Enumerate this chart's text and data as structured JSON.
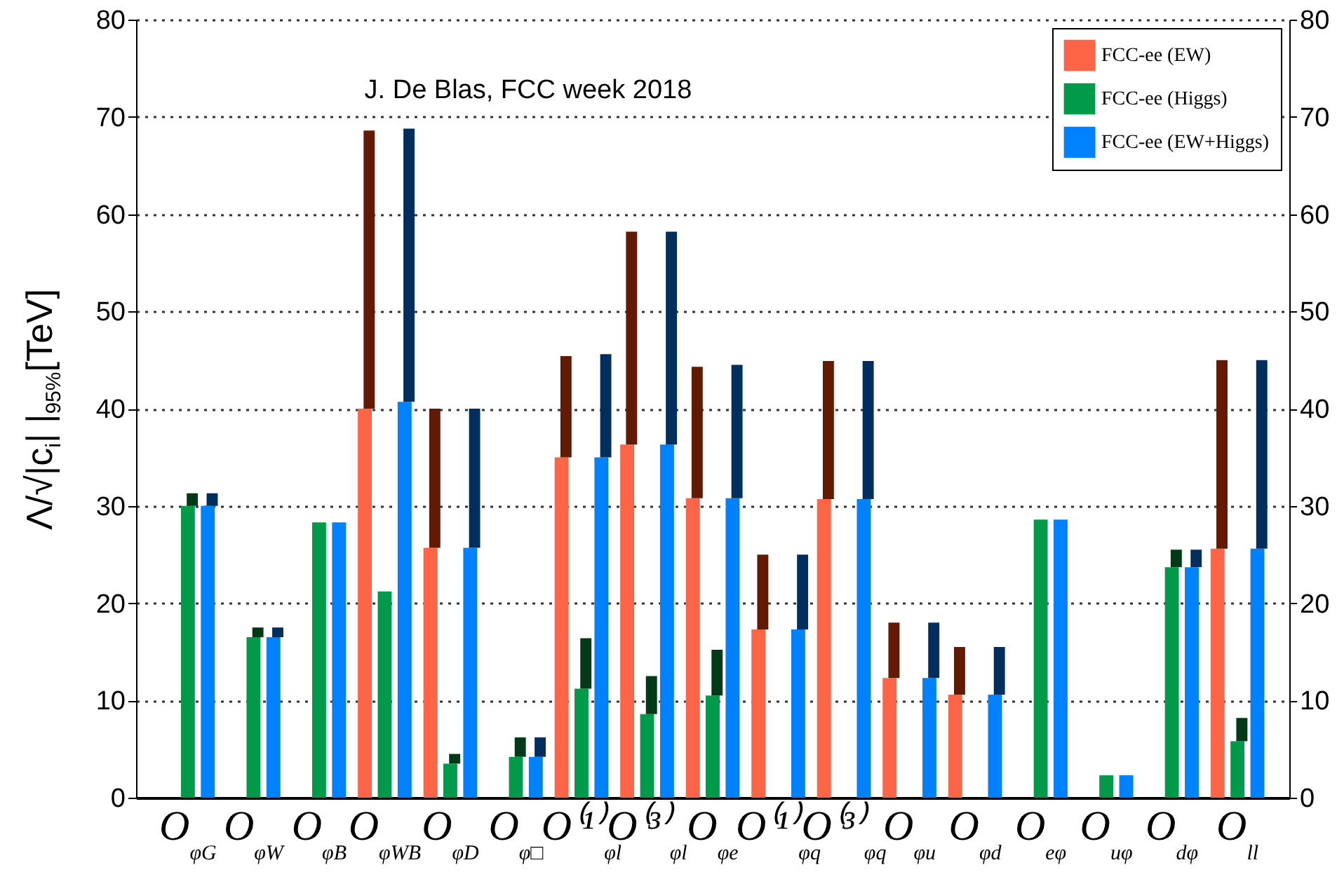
{
  "chart_data": {
    "type": "bar",
    "ylabel": "Λ/√|c$_{i}$| |$_{95%}$[TeV]",
    "annotations": [
      "J. De Blas, FCC week 2018"
    ],
    "categories": [
      "O$_{φG}$",
      "O$_{φW}$",
      "O$_{φB}$",
      "O$_{φWB}$",
      "O$_{φD}$",
      "O$_{φ□}$",
      "O⁽¹⁾$_{φl}$",
      "O⁽³⁾$_{φl}$",
      "O$_{φe}$",
      "O⁽¹⁾$_{φq}$",
      "O⁽³⁾$_{φq}$",
      "O$_{φu}$",
      "O$_{φd}$",
      "O$_{eφ}$",
      "O$_{uφ}$",
      "O$_{dφ}$",
      "O$_{ll}$"
    ],
    "series": [
      {
        "name": "FCC-ee (EW)",
        "color": "#fe6446",
        "values": [
          null,
          null,
          null,
          40,
          25.7,
          null,
          35,
          36.3,
          30.8,
          17.3,
          30.7,
          12.3,
          10.6,
          null,
          null,
          null,
          25.6
        ]
      },
      {
        "color": "#621a04",
        "base": [
          null,
          null,
          null,
          40,
          25.7,
          null,
          35,
          36.3,
          30.8,
          17.3,
          30.7,
          12.3,
          10.6,
          null,
          null,
          null,
          25.6
        ],
        "values": [
          null,
          null,
          null,
          28.6,
          14.3,
          null,
          10.4,
          21.9,
          13.5,
          7.7,
          14.2,
          5.7,
          4.9,
          null,
          null,
          null,
          19.4
        ]
      },
      {
        "name": "FCC-ee (Higgs)",
        "color": "#009a4a",
        "values": [
          30,
          16.5,
          28.3,
          21.2,
          3.5,
          4.2,
          11.2,
          8.6,
          10.5,
          null,
          null,
          null,
          null,
          28.6,
          2.3,
          23.7,
          5.8
        ]
      },
      {
        "color": "#003a17",
        "base": [
          30,
          16.5,
          null,
          null,
          3.5,
          4.2,
          11.2,
          8.6,
          10.5,
          null,
          null,
          null,
          null,
          null,
          null,
          23.7,
          5.8
        ],
        "values": [
          1.3,
          1.0,
          null,
          null,
          1.0,
          2.0,
          5.2,
          3.9,
          4.7,
          null,
          null,
          null,
          null,
          null,
          null,
          1.8,
          2.4
        ]
      },
      {
        "name": "FCC-ee (EW+Higgs)",
        "color": "#0081ff",
        "values": [
          30,
          16.5,
          28.3,
          40.7,
          25.7,
          4.2,
          35,
          36.3,
          30.8,
          17.3,
          30.7,
          12.3,
          10.6,
          28.6,
          2.3,
          23.7,
          25.6
        ]
      },
      {
        "color": "#002e5f",
        "base": [
          30,
          16.5,
          null,
          40.7,
          25.7,
          4.2,
          35,
          36.3,
          30.8,
          17.3,
          30.7,
          12.3,
          10.6,
          null,
          null,
          23.7,
          25.6
        ],
        "values": [
          1.3,
          1.0,
          null,
          28.1,
          14.3,
          2.0,
          10.6,
          21.9,
          13.7,
          7.7,
          14.2,
          5.7,
          4.9,
          null,
          null,
          1.8,
          19.4
        ]
      }
    ],
    "ylim": [
      0,
      80
    ],
    "yticks": [
      0,
      10,
      20,
      30,
      40,
      50,
      60,
      70,
      80
    ],
    "y2lim": [
      0,
      80
    ],
    "y2ticks": [
      0,
      10,
      20,
      30,
      40,
      50,
      60,
      70,
      80
    ],
    "grid": "y",
    "legend": "top right"
  }
}
